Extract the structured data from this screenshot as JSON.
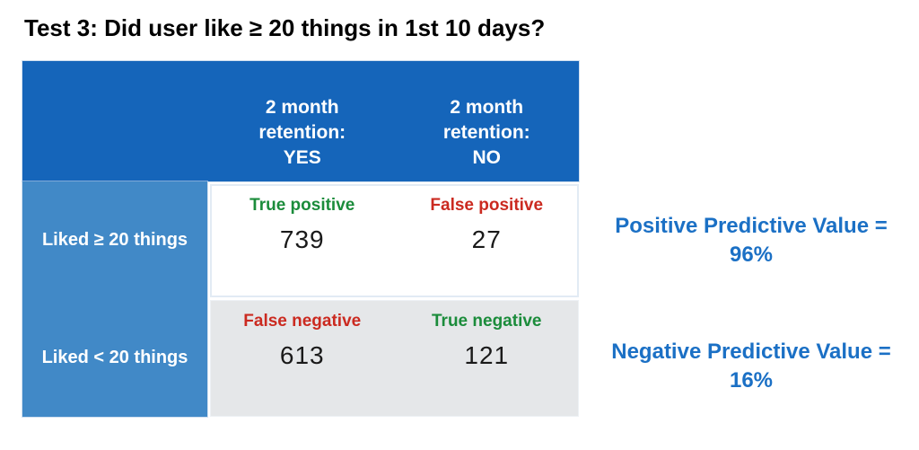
{
  "title": "Test 3: Did user like ≥ 20 things in 1st 10 days?",
  "table": {
    "col_headers": [
      "2 month\nretention:\nYES",
      "2 month\nretention:\nNO"
    ],
    "row_headers": [
      "Liked ≥ 20 things",
      "Liked < 20 things"
    ],
    "cells": [
      [
        {
          "label": "True positive",
          "value": "739",
          "label_color": "green"
        },
        {
          "label": "False positive",
          "value": "27",
          "label_color": "red"
        }
      ],
      [
        {
          "label": "False negative",
          "value": "613",
          "label_color": "red"
        },
        {
          "label": "True negative",
          "value": "121",
          "label_color": "green"
        }
      ]
    ]
  },
  "annotations": {
    "ppv": "Positive Predictive Value =\n96%",
    "npv": "Negative Predictive Value =\n16%"
  },
  "colors": {
    "header_bg": "#1565BA",
    "row_label_bg": "#4189C7",
    "row2_bg": "#E5E7E9",
    "green": "#1B8C3B",
    "red": "#CB2A20",
    "annotation_blue": "#1B70C5",
    "title_black": "#000000"
  },
  "chart_data": {
    "type": "table",
    "title": "Test 3: Did user like ≥ 20 things in 1st 10 days?",
    "columns": [
      "2 month retention: YES",
      "2 month retention: NO"
    ],
    "rows": [
      "Liked ≥ 20 things",
      "Liked < 20 things"
    ],
    "values": [
      [
        739,
        27
      ],
      [
        613,
        121
      ]
    ],
    "cell_labels": [
      [
        "True positive",
        "False positive"
      ],
      [
        "False negative",
        "True negative"
      ]
    ],
    "positive_predictive_value": "96%",
    "negative_predictive_value": "16%"
  }
}
